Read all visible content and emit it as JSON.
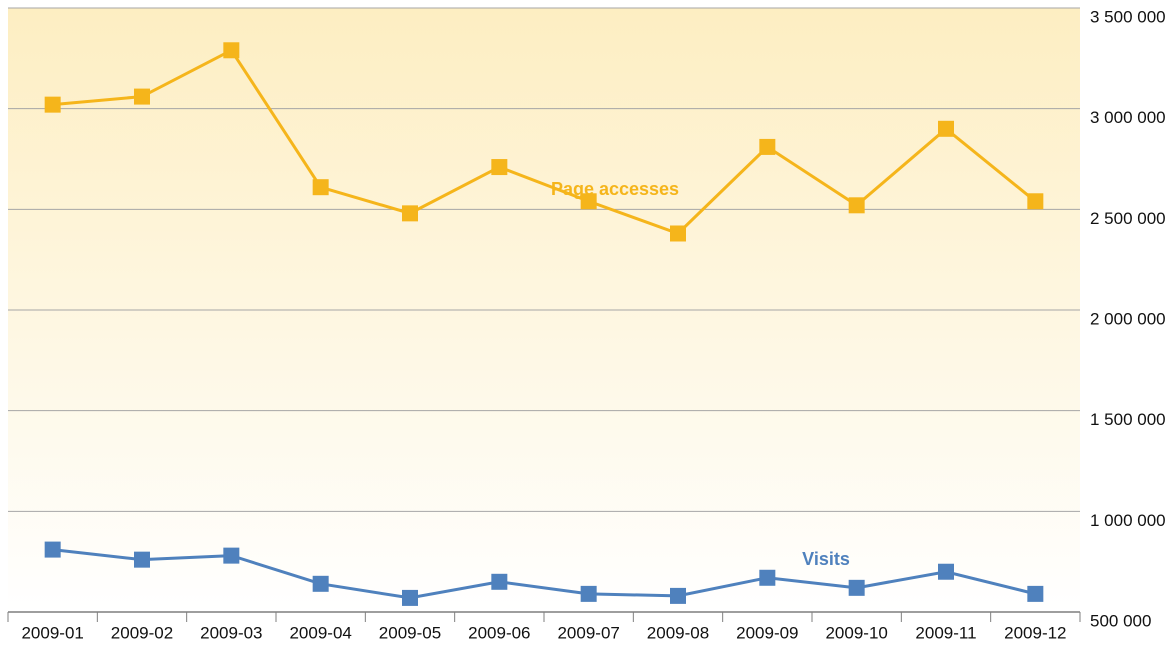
{
  "chart_data": {
    "type": "line",
    "categories": [
      "2009-01",
      "2009-02",
      "2009-03",
      "2009-04",
      "2009-05",
      "2009-06",
      "2009-07",
      "2009-08",
      "2009-09",
      "2009-10",
      "2009-11",
      "2009-12"
    ],
    "series": [
      {
        "name": "Page accesses",
        "color": "#f5b51b",
        "values": [
          3020000,
          3060000,
          3290000,
          2610000,
          2480000,
          2710000,
          2540000,
          2380000,
          2810000,
          2520000,
          2900000,
          2540000
        ]
      },
      {
        "name": "Visits",
        "color": "#4f81bd",
        "values": [
          810000,
          760000,
          780000,
          640000,
          570000,
          650000,
          590000,
          580000,
          670000,
          620000,
          700000,
          590000
        ]
      }
    ],
    "ylim": [
      500000,
      3500000
    ],
    "yticks": [
      {
        "value": 500000,
        "label": "500 000"
      },
      {
        "value": 1000000,
        "label": "1 000 000"
      },
      {
        "value": 1500000,
        "label": "1 500 000"
      },
      {
        "value": 2000000,
        "label": "2 000 000"
      },
      {
        "value": 2500000,
        "label": "2 500 000"
      },
      {
        "value": 3000000,
        "label": "3 000 000"
      },
      {
        "value": 3500000,
        "label": "3 500 000"
      }
    ],
    "grid": true
  }
}
